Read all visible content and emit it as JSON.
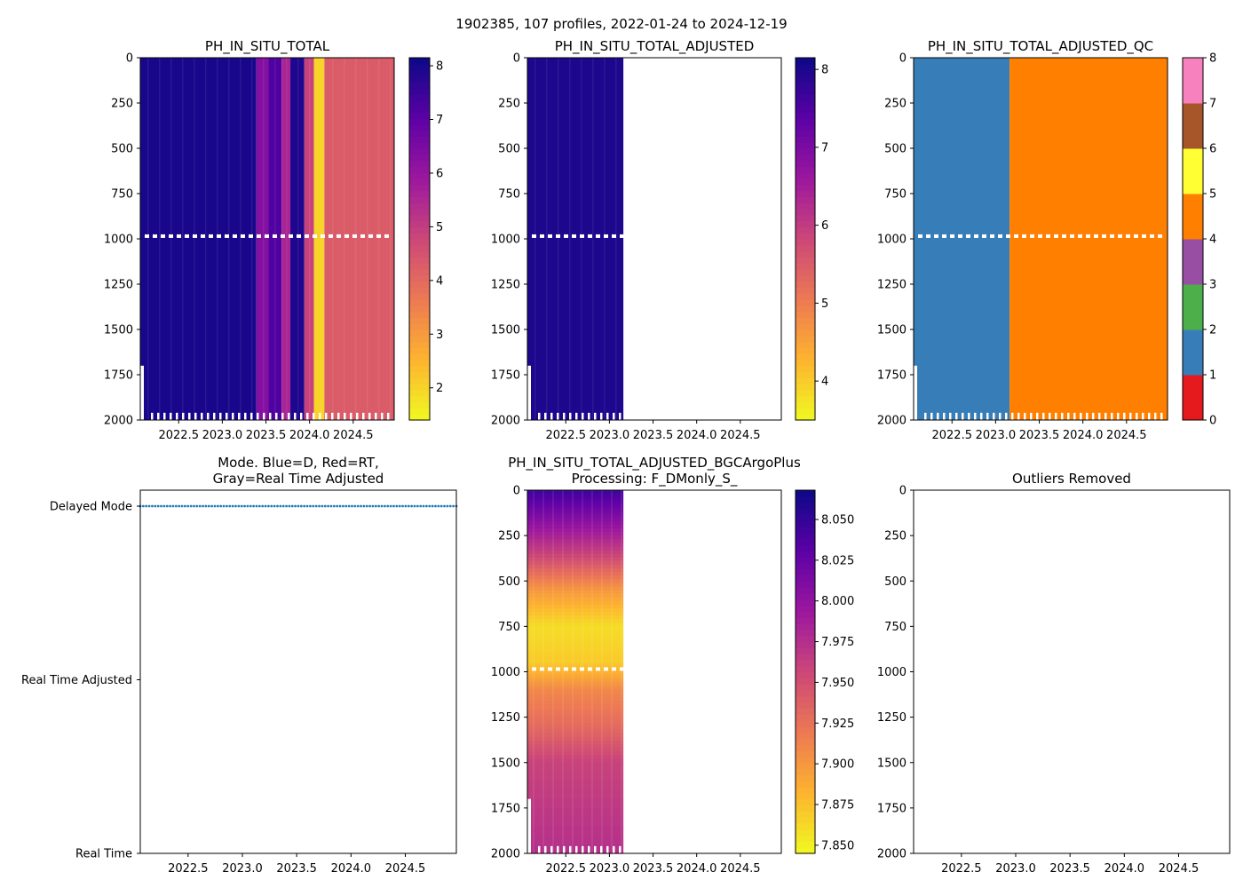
{
  "figure_title": "1902385, 107 profiles, 2022-01-24 to 2024-12-19",
  "colors": {
    "qc_levels": [
      "#e41a1c",
      "#377eb8",
      "#4daf4a",
      "#984ea3",
      "#ff7f00",
      "#ffff33",
      "#a65628",
      "#f781bf",
      "#999999"
    ],
    "mode_delayed": "#1f77b4",
    "plasma_stops": [
      "#0d0887",
      "#5c01a6",
      "#9c179e",
      "#cc4778",
      "#ed7953",
      "#fdb42f",
      "#f0f921"
    ]
  },
  "chart_data": [
    {
      "id": "p1",
      "type": "heatmap",
      "title": "PH_IN_SITU_TOTAL",
      "colormap": "plasma_r",
      "ylabel": "",
      "xlim": [
        2022.06,
        2024.97
      ],
      "ylim": [
        2000,
        0
      ],
      "x_ticks": [
        "2022.5",
        "2023.0",
        "2023.5",
        "2024.0",
        "2024.5"
      ],
      "y_ticks": [
        "0",
        "250",
        "500",
        "750",
        "1000",
        "1250",
        "1500",
        "1750",
        "2000"
      ],
      "colorbar": {
        "min": 1.4,
        "max": 8.15,
        "ticks": [
          "2",
          "3",
          "4",
          "5",
          "6",
          "7",
          "8"
        ],
        "tick_values": [
          2,
          3,
          4,
          5,
          6,
          7,
          8
        ]
      },
      "segments": [
        {
          "x0": 2022.06,
          "x1": 2023.39,
          "value": 8.0
        },
        {
          "x0": 2023.39,
          "x1": 2023.53,
          "value": 6.3
        },
        {
          "x0": 2023.53,
          "x1": 2023.68,
          "value": 7.2
        },
        {
          "x0": 2023.68,
          "x1": 2023.78,
          "value": 5.6
        },
        {
          "x0": 2023.78,
          "x1": 2023.94,
          "value": 7.9
        },
        {
          "x0": 2023.94,
          "x1": 2024.05,
          "value": 4.9
        },
        {
          "x0": 2024.05,
          "x1": 2024.17,
          "value": 2.0
        },
        {
          "x0": 2024.17,
          "x1": 2024.97,
          "value": 4.3
        }
      ]
    },
    {
      "id": "p2",
      "type": "heatmap",
      "title": "PH_IN_SITU_TOTAL_ADJUSTED",
      "colormap": "plasma_r",
      "xlim": [
        2022.06,
        2024.97
      ],
      "ylim": [
        2000,
        0
      ],
      "x_ticks": [
        "2022.5",
        "2023.0",
        "2023.5",
        "2024.0",
        "2024.5"
      ],
      "y_ticks": [
        "0",
        "250",
        "500",
        "750",
        "1000",
        "1250",
        "1500",
        "1750",
        "2000"
      ],
      "colorbar": {
        "min": 3.5,
        "max": 8.15,
        "ticks": [
          "4",
          "5",
          "6",
          "7",
          "8"
        ],
        "tick_values": [
          4,
          5,
          6,
          7,
          8
        ]
      },
      "segments": [
        {
          "x0": 2022.06,
          "x1": 2023.16,
          "value": 8.0
        }
      ]
    },
    {
      "id": "p3",
      "type": "heatmap",
      "title": "PH_IN_SITU_TOTAL_ADJUSTED_QC",
      "colormap": "qc",
      "xlim": [
        2022.06,
        2024.97
      ],
      "ylim": [
        2000,
        0
      ],
      "x_ticks": [
        "2022.5",
        "2023.0",
        "2023.5",
        "2024.0",
        "2024.5"
      ],
      "y_ticks": [
        "0",
        "250",
        "500",
        "750",
        "1000",
        "1250",
        "1500",
        "1750",
        "2000"
      ],
      "colorbar": {
        "min": 0,
        "max": 8,
        "ticks": [
          "0",
          "1",
          "2",
          "3",
          "4",
          "5",
          "6",
          "7",
          "8"
        ],
        "tick_values": [
          0,
          1,
          2,
          3,
          4,
          5,
          6,
          7,
          8
        ]
      },
      "segments": [
        {
          "x0": 2022.06,
          "x1": 2023.16,
          "value": 1
        },
        {
          "x0": 2023.16,
          "x1": 2024.97,
          "value": 4
        }
      ]
    },
    {
      "id": "p4",
      "type": "scatter",
      "title_lines": [
        "Mode. Blue=D, Red=RT,",
        "Gray=Real Time Adjusted"
      ],
      "xlim": [
        2022.06,
        2024.97
      ],
      "x_ticks": [
        "2022.5",
        "2023.0",
        "2023.5",
        "2024.0",
        "2024.5"
      ],
      "y_categories": [
        "Real Time",
        "Real Time Adjusted",
        "Delayed Mode"
      ],
      "y_values": [
        0,
        1,
        2
      ],
      "series": [
        {
          "name": "Delayed Mode",
          "x_start": 2022.06,
          "x_end": 2024.97,
          "count": 107,
          "y": 2
        }
      ]
    },
    {
      "id": "p5",
      "type": "heatmap",
      "title_lines": [
        "PH_IN_SITU_TOTAL_ADJUSTED_BGCArgoPlus",
        "Processing: F_DMonly_S_"
      ],
      "colormap": "plasma_r",
      "xlim": [
        2022.06,
        2024.97
      ],
      "ylim": [
        2000,
        0
      ],
      "x_ticks": [
        "2022.5",
        "2023.0",
        "2023.5",
        "2024.0",
        "2024.5"
      ],
      "y_ticks": [
        "0",
        "250",
        "500",
        "750",
        "1000",
        "1250",
        "1500",
        "1750",
        "2000"
      ],
      "colorbar": {
        "min": 7.845,
        "max": 8.068,
        "ticks": [
          "7.850",
          "7.875",
          "7.900",
          "7.925",
          "7.950",
          "7.975",
          "8.000",
          "8.025",
          "8.050"
        ],
        "tick_values": [
          7.85,
          7.875,
          7.9,
          7.925,
          7.95,
          7.975,
          8.0,
          8.025,
          8.05
        ]
      },
      "profile": [
        {
          "depth": 0,
          "value": 8.045
        },
        {
          "depth": 150,
          "value": 8.01
        },
        {
          "depth": 350,
          "value": 7.96
        },
        {
          "depth": 550,
          "value": 7.9
        },
        {
          "depth": 750,
          "value": 7.86
        },
        {
          "depth": 950,
          "value": 7.87
        },
        {
          "depth": 1100,
          "value": 7.91
        },
        {
          "depth": 1300,
          "value": 7.93
        },
        {
          "depth": 1500,
          "value": 7.96
        },
        {
          "depth": 2000,
          "value": 7.975
        }
      ],
      "x_extent": [
        2022.06,
        2023.16
      ]
    },
    {
      "id": "p6",
      "type": "scatter",
      "title": "Outliers Removed",
      "xlim": [
        2022.06,
        2024.97
      ],
      "ylim": [
        2000,
        0
      ],
      "x_ticks": [
        "2022.5",
        "2023.0",
        "2023.5",
        "2024.0",
        "2024.5"
      ],
      "y_ticks": [
        "0",
        "250",
        "500",
        "750",
        "1000",
        "1250",
        "1500",
        "1750",
        "2000"
      ],
      "series": []
    }
  ]
}
